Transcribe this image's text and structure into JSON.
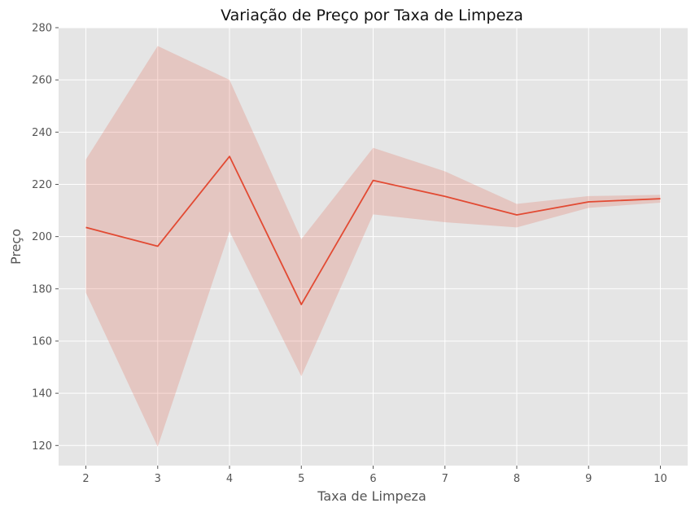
{
  "chart_data": {
    "type": "line",
    "title": "Variação de Preço por Taxa de Limpeza",
    "xlabel": "Taxa de Limpeza",
    "ylabel": "Preço",
    "x": [
      2,
      3,
      4,
      5,
      6,
      7,
      8,
      9,
      10
    ],
    "series": [
      {
        "values": [
          203.5,
          196.3,
          230.7,
          174.0,
          221.5,
          215.4,
          208.3,
          213.3,
          214.5
        ],
        "ci_lower": [
          178.5,
          119.5,
          202.0,
          146.5,
          208.5,
          205.5,
          203.5,
          211.0,
          213.0
        ],
        "ci_upper": [
          229.5,
          273.0,
          260.0,
          199.0,
          234.0,
          225.0,
          212.5,
          215.5,
          216.0
        ]
      }
    ],
    "xlim": [
      1.62,
      10.38
    ],
    "ylim": [
      112.3,
      280.0
    ],
    "xticks": [
      2,
      3,
      4,
      5,
      6,
      7,
      8,
      9,
      10
    ],
    "yticks": [
      120,
      140,
      160,
      180,
      200,
      220,
      240,
      260,
      280
    ],
    "grid": true,
    "style": {
      "background": "#E5E5E5",
      "grid_color": "#FFFFFF",
      "line_color": "#E24A33",
      "band_color": "#E24A33",
      "text_color": "#555555",
      "title_color": "#111111"
    }
  }
}
